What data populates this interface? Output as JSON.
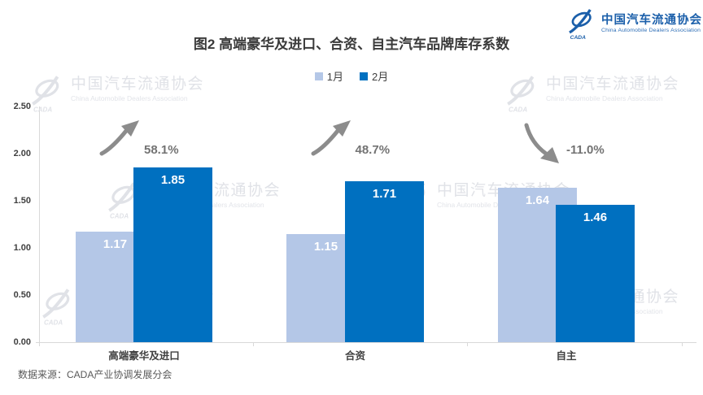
{
  "header": {
    "logo": {
      "zh": "中国汽车流通协会",
      "en": "China Automobile Dealers Association",
      "mark": "CADA"
    }
  },
  "title": "图2  高端豪华及进口、合资、自主汽车品牌库存系数",
  "watermark": {
    "zh": "中国汽车流通协会",
    "en": "China Automobile Dealers Association",
    "mark": "CADA"
  },
  "footer": {
    "source": "数据来源：CADA产业协调发展分会"
  },
  "chart_data": {
    "type": "bar",
    "title": "图2  高端豪华及进口、合资、自主汽车品牌库存系数",
    "categories": [
      "高端豪华及进口",
      "合资",
      "自主"
    ],
    "series": [
      {
        "name": "1月",
        "color": "#B4C7E7",
        "values": [
          1.17,
          1.15,
          1.64
        ]
      },
      {
        "name": "2月",
        "color": "#0070C0",
        "values": [
          1.85,
          1.71,
          1.46
        ]
      }
    ],
    "changes": [
      {
        "label": "58.1%",
        "direction": "up"
      },
      {
        "label": "48.7%",
        "direction": "up"
      },
      {
        "label": "-11.0%",
        "direction": "down"
      }
    ],
    "ylim": [
      0,
      2.5
    ],
    "yticks": [
      "0.00",
      "0.50",
      "1.00",
      "1.50",
      "2.00",
      "2.50"
    ],
    "legend_position": "top",
    "grid": false,
    "arrow_color": "#8C8C8C"
  }
}
